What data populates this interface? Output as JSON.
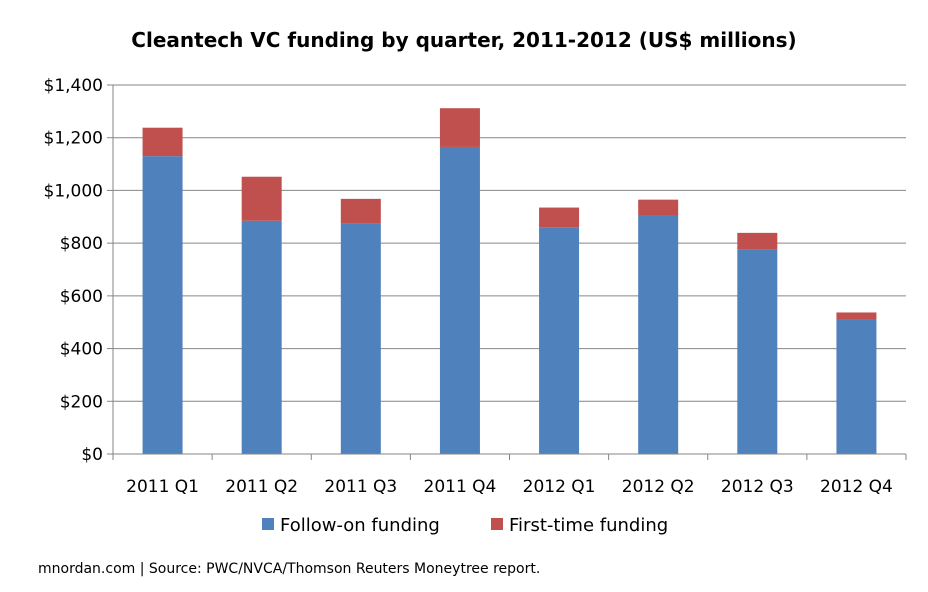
{
  "chart_data": {
    "type": "bar",
    "stacked": true,
    "title": "Cleantech VC funding by quarter, 2011-2012 (US$ millions)",
    "categories": [
      "2011 Q1",
      "2011 Q2",
      "2011 Q3",
      "2011 Q4",
      "2012 Q1",
      "2012 Q2",
      "2012 Q3",
      "2012 Q4"
    ],
    "series": [
      {
        "name": "Follow-on funding",
        "color": "#4f81bd",
        "values": [
          1130,
          885,
          875,
          1165,
          860,
          905,
          775,
          510
        ]
      },
      {
        "name": "First-time funding",
        "color": "#c0504d",
        "values": [
          108,
          167,
          93,
          147,
          75,
          60,
          64,
          27
        ]
      }
    ],
    "ylim": [
      0,
      1400
    ],
    "yticks": [
      0,
      200,
      400,
      600,
      800,
      1000,
      1200,
      1400
    ],
    "ytick_labels": [
      "$0",
      "$200",
      "$400",
      "$600",
      "$800",
      "$1,000",
      "$1,200",
      "$1,400"
    ],
    "grid": true,
    "legend_position": "bottom"
  },
  "source_note": "mnordan.com | Source: PWC/NVCA/Thomson Reuters Moneytree report."
}
